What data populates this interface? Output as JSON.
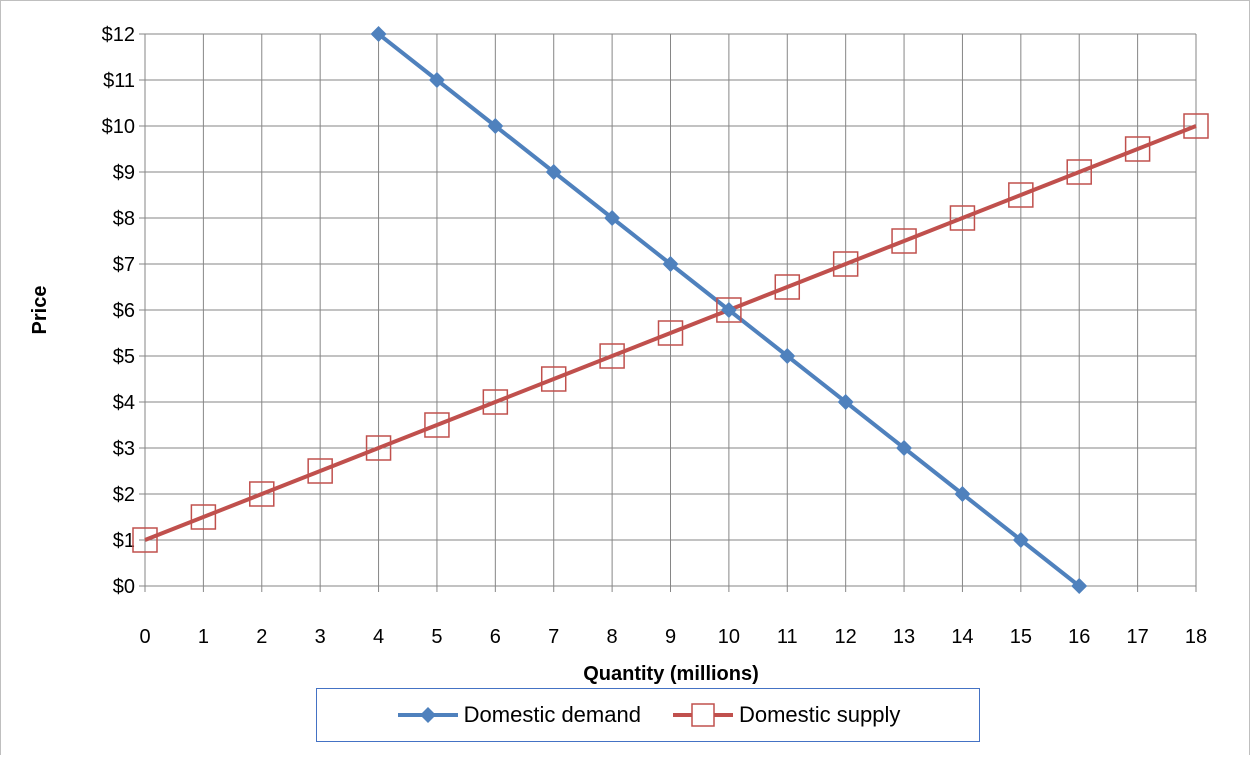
{
  "chart_data": {
    "type": "line",
    "title": "",
    "xlabel": "Quantity (millions)",
    "ylabel": "Price",
    "xlim": [
      0,
      18
    ],
    "ylim": [
      0,
      12
    ],
    "x_ticks": [
      "0",
      "1",
      "2",
      "3",
      "4",
      "5",
      "6",
      "7",
      "8",
      "9",
      "10",
      "11",
      "12",
      "13",
      "14",
      "15",
      "16",
      "17",
      "18"
    ],
    "y_ticks": [
      "$0",
      "$1",
      "$2",
      "$3",
      "$4",
      "$5",
      "$6",
      "$7",
      "$8",
      "$9",
      "$10",
      "$11",
      "$12"
    ],
    "grid": true,
    "legend_position": "bottom",
    "series": [
      {
        "name": "Domestic demand",
        "color": "#4f81bd",
        "marker": "diamond",
        "points": [
          {
            "x": 4,
            "y": 12
          },
          {
            "x": 5,
            "y": 11
          },
          {
            "x": 6,
            "y": 10
          },
          {
            "x": 7,
            "y": 9
          },
          {
            "x": 8,
            "y": 8
          },
          {
            "x": 9,
            "y": 7
          },
          {
            "x": 10,
            "y": 6
          },
          {
            "x": 11,
            "y": 5
          },
          {
            "x": 12,
            "y": 4
          },
          {
            "x": 13,
            "y": 3
          },
          {
            "x": 14,
            "y": 2
          },
          {
            "x": 15,
            "y": 1
          },
          {
            "x": 16,
            "y": 0
          }
        ]
      },
      {
        "name": "Domestic supply",
        "color": "#c0504d",
        "marker": "square-open",
        "points": [
          {
            "x": 0,
            "y": 1
          },
          {
            "x": 1,
            "y": 1.5
          },
          {
            "x": 2,
            "y": 2
          },
          {
            "x": 3,
            "y": 2.5
          },
          {
            "x": 4,
            "y": 3
          },
          {
            "x": 5,
            "y": 3.5
          },
          {
            "x": 6,
            "y": 4
          },
          {
            "x": 7,
            "y": 4.5
          },
          {
            "x": 8,
            "y": 5
          },
          {
            "x": 9,
            "y": 5.5
          },
          {
            "x": 10,
            "y": 6
          },
          {
            "x": 11,
            "y": 6.5
          },
          {
            "x": 12,
            "y": 7
          },
          {
            "x": 13,
            "y": 7.5
          },
          {
            "x": 14,
            "y": 8
          },
          {
            "x": 15,
            "y": 8.5
          },
          {
            "x": 16,
            "y": 9
          },
          {
            "x": 17,
            "y": 9.5
          },
          {
            "x": 18,
            "y": 10
          }
        ]
      }
    ]
  }
}
